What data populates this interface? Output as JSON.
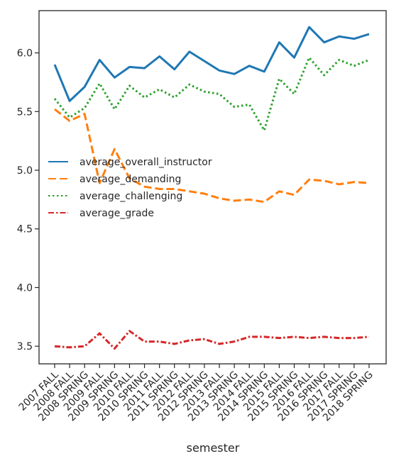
{
  "chart_data": {
    "type": "line",
    "xlabel": "semester",
    "ylabel": "",
    "ylim": [
      3.35,
      6.36
    ],
    "yticks": [
      3.5,
      4.0,
      4.5,
      5.0,
      5.5,
      6.0
    ],
    "ytick_labels": [
      "3.5",
      "4.0",
      "4.5",
      "5.0",
      "5.5",
      "6.0"
    ],
    "grid": false,
    "legend_position": "center-left",
    "categories": [
      "2007 FALL",
      "2008 FALL",
      "2008 SPRING",
      "2009 FALL",
      "2009 SPRING",
      "2010 FALL",
      "2010 SPRING",
      "2011 FALL",
      "2011 SPRING",
      "2012 FALL",
      "2012 SPRING",
      "2013 FALL",
      "2013 SPRING",
      "2014 FALL",
      "2014 SPRING",
      "2015 FALL",
      "2015 SPRING",
      "2016 FALL",
      "2016 SPRING",
      "2017 FALL",
      "2017 SPRING",
      "2018 SPRING"
    ],
    "series": [
      {
        "name": "average_overall_instructor",
        "color": "#1f77b4",
        "dash": "solid",
        "values": [
          5.9,
          5.59,
          5.71,
          5.94,
          5.79,
          5.88,
          5.87,
          5.97,
          5.86,
          6.01,
          5.93,
          5.85,
          5.82,
          5.89,
          5.84,
          6.09,
          5.96,
          6.22,
          6.09,
          6.14,
          6.12,
          6.16
        ]
      },
      {
        "name": "average_demanding",
        "color": "#ff7f0e",
        "dash": "dashed",
        "values": [
          5.52,
          5.42,
          5.48,
          4.89,
          5.18,
          4.93,
          4.86,
          4.84,
          4.84,
          4.82,
          4.8,
          4.76,
          4.74,
          4.75,
          4.73,
          4.82,
          4.79,
          4.92,
          4.91,
          4.88,
          4.9,
          4.89
        ]
      },
      {
        "name": "average_challenging",
        "color": "#2ca02c",
        "dash": "dotted",
        "values": [
          5.61,
          5.45,
          5.53,
          5.74,
          5.52,
          5.72,
          5.62,
          5.69,
          5.62,
          5.73,
          5.67,
          5.65,
          5.54,
          5.56,
          5.34,
          5.78,
          5.65,
          5.96,
          5.81,
          5.94,
          5.89,
          5.94
        ]
      },
      {
        "name": "average_grade",
        "color": "#d62728",
        "dash": "dashdot",
        "values": [
          3.5,
          3.49,
          3.5,
          3.61,
          3.48,
          3.63,
          3.54,
          3.54,
          3.52,
          3.55,
          3.56,
          3.52,
          3.54,
          3.58,
          3.58,
          3.57,
          3.58,
          3.57,
          3.58,
          3.57,
          3.57,
          3.58
        ]
      }
    ]
  }
}
